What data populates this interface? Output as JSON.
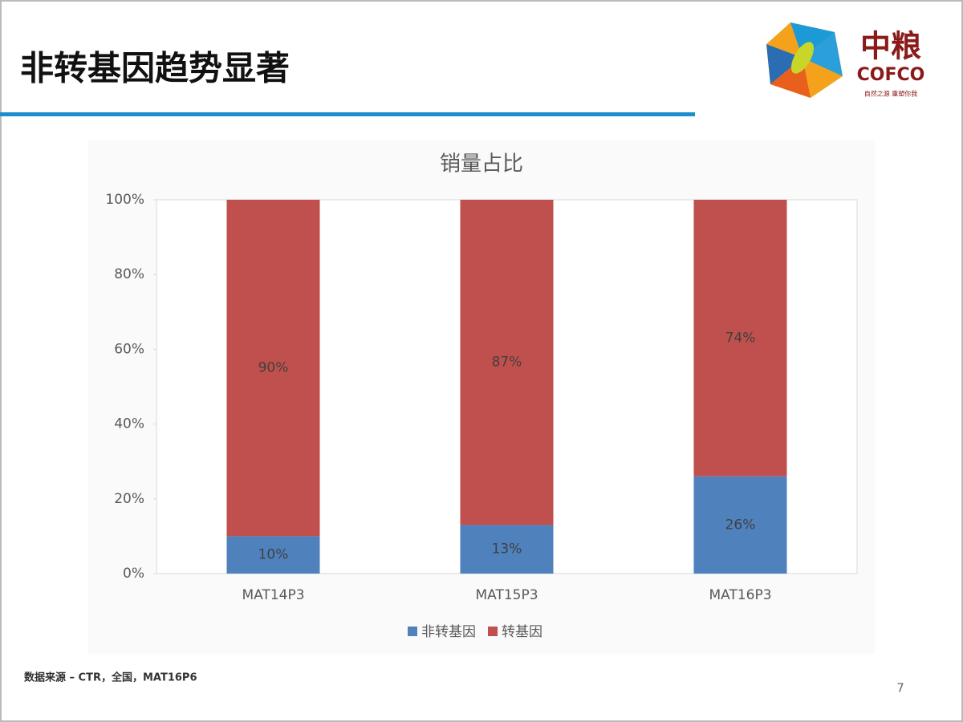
{
  "slide": {
    "title": "非转基因趋势显著",
    "logo": {
      "name_cn": "中粮",
      "name_en": "COFCO",
      "tagline": "自然之源 重塑你我"
    },
    "source": "数据来源 – CTR，全国，MAT16P6",
    "page_number": "7"
  },
  "chart_data": {
    "type": "stacked_bar",
    "title": "销量占比",
    "categories": [
      "MAT14P3",
      "MAT15P3",
      "MAT16P3"
    ],
    "series": [
      {
        "name": "非转基因",
        "color": "#4f81bd",
        "values": [
          10,
          13,
          26
        ],
        "value_labels": [
          "10%",
          "13%",
          "26%"
        ]
      },
      {
        "name": "转基因",
        "color": "#c0504d",
        "values": [
          90,
          87,
          74
        ],
        "value_labels": [
          "90%",
          "87%",
          "74%"
        ]
      }
    ],
    "ylim": [
      0,
      100
    ],
    "yticks": [
      {
        "value": 0,
        "label": "0%"
      },
      {
        "value": 20,
        "label": "20%"
      },
      {
        "value": 40,
        "label": "40%"
      },
      {
        "value": 60,
        "label": "60%"
      },
      {
        "value": 80,
        "label": "80%"
      },
      {
        "value": 100,
        "label": "100%"
      }
    ],
    "legend": "bottom"
  }
}
